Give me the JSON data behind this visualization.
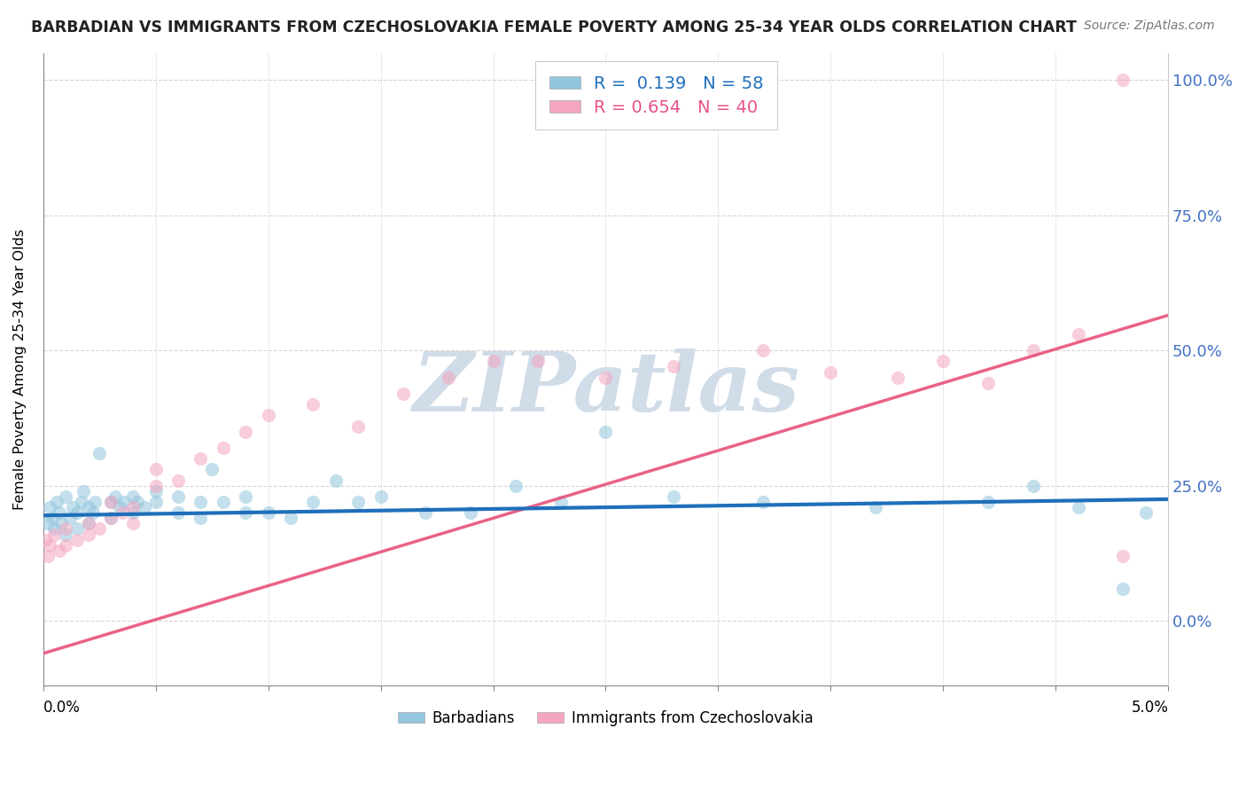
{
  "title": "BARBADIAN VS IMMIGRANTS FROM CZECHOSLOVAKIA FEMALE POVERTY AMONG 25-34 YEAR OLDS CORRELATION CHART",
  "source_text": "Source: ZipAtlas.com",
  "ylabel": "Female Poverty Among 25-34 Year Olds",
  "right_yticklabels": [
    "0.0%",
    "25.0%",
    "50.0%",
    "75.0%",
    "100.0%"
  ],
  "right_ytick_vals": [
    0.0,
    0.25,
    0.5,
    0.75,
    1.0
  ],
  "legend_blue_r": "0.139",
  "legend_blue_n": "58",
  "legend_pink_r": "0.654",
  "legend_pink_n": "40",
  "blue_color": "#92c5de",
  "pink_color": "#f4a6c0",
  "blue_line_color": "#1f6fba",
  "pink_line_color": "#e8517a",
  "watermark": "ZIPatlas",
  "watermark_color": "#d0dce8",
  "grid_color": "#cccccc",
  "title_color": "#222222",
  "source_color": "#777777",
  "right_tick_color": "#4472c4",
  "xlim": [
    0.0,
    0.05
  ],
  "ylim": [
    -0.12,
    1.05
  ],
  "blue_scatter_x": [
    0.0002,
    0.0003,
    0.0004,
    0.0005,
    0.0006,
    0.0007,
    0.0008,
    0.001,
    0.001,
    0.0012,
    0.0013,
    0.0015,
    0.0015,
    0.0017,
    0.0018,
    0.002,
    0.002,
    0.0022,
    0.0023,
    0.0025,
    0.003,
    0.003,
    0.0032,
    0.0034,
    0.0036,
    0.004,
    0.004,
    0.0042,
    0.0045,
    0.005,
    0.005,
    0.006,
    0.006,
    0.007,
    0.007,
    0.0075,
    0.008,
    0.009,
    0.009,
    0.01,
    0.011,
    0.012,
    0.013,
    0.014,
    0.015,
    0.017,
    0.019,
    0.021,
    0.023,
    0.025,
    0.028,
    0.032,
    0.037,
    0.042,
    0.044,
    0.046,
    0.048,
    0.049
  ],
  "blue_scatter_y": [
    0.18,
    0.21,
    0.19,
    0.17,
    0.22,
    0.2,
    0.18,
    0.16,
    0.23,
    0.19,
    0.21,
    0.17,
    0.2,
    0.22,
    0.24,
    0.18,
    0.21,
    0.2,
    0.22,
    0.31,
    0.19,
    0.22,
    0.23,
    0.21,
    0.22,
    0.2,
    0.23,
    0.22,
    0.21,
    0.24,
    0.22,
    0.2,
    0.23,
    0.19,
    0.22,
    0.28,
    0.22,
    0.23,
    0.2,
    0.2,
    0.19,
    0.22,
    0.26,
    0.22,
    0.23,
    0.2,
    0.2,
    0.25,
    0.22,
    0.35,
    0.23,
    0.22,
    0.21,
    0.22,
    0.25,
    0.21,
    0.06,
    0.2
  ],
  "pink_scatter_x": [
    0.0001,
    0.0002,
    0.0003,
    0.0005,
    0.0007,
    0.001,
    0.001,
    0.0015,
    0.002,
    0.002,
    0.0025,
    0.003,
    0.003,
    0.0035,
    0.004,
    0.004,
    0.005,
    0.005,
    0.006,
    0.007,
    0.008,
    0.009,
    0.01,
    0.012,
    0.014,
    0.016,
    0.018,
    0.02,
    0.022,
    0.025,
    0.028,
    0.032,
    0.035,
    0.038,
    0.04,
    0.042,
    0.044,
    0.046,
    0.048,
    0.048
  ],
  "pink_scatter_y": [
    0.15,
    0.12,
    0.14,
    0.16,
    0.13,
    0.17,
    0.14,
    0.15,
    0.18,
    0.16,
    0.17,
    0.19,
    0.22,
    0.2,
    0.18,
    0.21,
    0.25,
    0.28,
    0.26,
    0.3,
    0.32,
    0.35,
    0.38,
    0.4,
    0.36,
    0.42,
    0.45,
    0.48,
    0.48,
    0.45,
    0.47,
    0.5,
    0.46,
    0.45,
    0.48,
    0.44,
    0.5,
    0.53,
    0.12,
    1.0
  ]
}
